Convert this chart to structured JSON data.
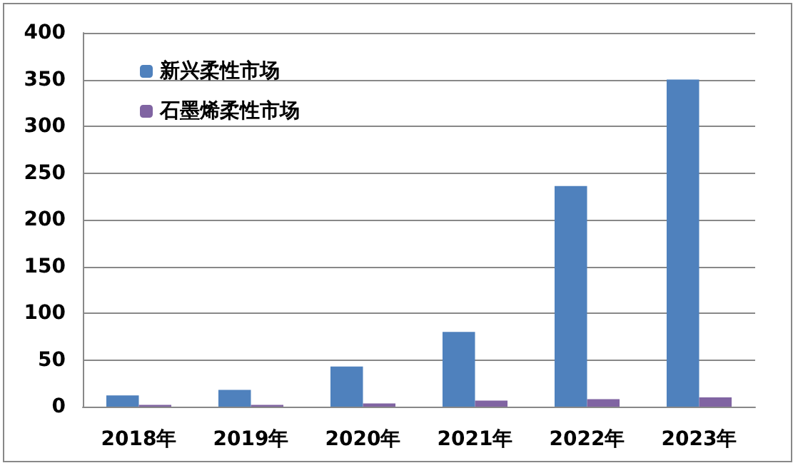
{
  "chart_data": {
    "type": "bar",
    "categories": [
      "2018年",
      "2019年",
      "2020年",
      "2021年",
      "2022年",
      "2023年"
    ],
    "series": [
      {
        "name": "新兴柔性市场",
        "color": "#4f81bd",
        "values": [
          12,
          18,
          43,
          80,
          236,
          350
        ]
      },
      {
        "name": "石墨烯柔性市场",
        "color": "#8064a2",
        "values": [
          2,
          2,
          3.5,
          6.5,
          8,
          10
        ]
      }
    ],
    "ylim": [
      0,
      400
    ],
    "yticks": [
      0,
      50,
      100,
      150,
      200,
      250,
      300,
      350,
      400
    ],
    "grid": "y",
    "legend": "top left"
  }
}
